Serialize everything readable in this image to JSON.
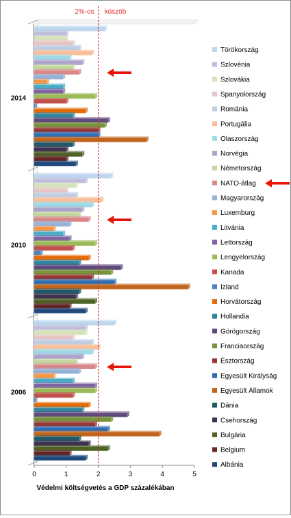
{
  "chart_data": {
    "type": "bar",
    "orientation": "horizontal",
    "title": "",
    "xlabel": "Védelmi költségvetés a GDP százalékában",
    "xlim": [
      0,
      5
    ],
    "xticks": [
      "0",
      "1",
      "2",
      "3",
      "4",
      "5"
    ],
    "groups": [
      "2014",
      "2010",
      "2006"
    ],
    "threshold": {
      "value": 2,
      "label_left": "2%-os",
      "label_right": "küszöb",
      "color": "#e03030"
    },
    "legend_position": "right",
    "grid": false,
    "highlight_series": "NATO-átlag",
    "arrow_color": "#e8140a",
    "series": [
      {
        "name": "Törökország",
        "color": "#bdd7ee",
        "values": [
          2.2,
          2.4,
          2.5
        ]
      },
      {
        "name": "Szlovénia",
        "color": "#c0bedc",
        "values": [
          1.0,
          1.6,
          1.6
        ]
      },
      {
        "name": "Szlovákia",
        "color": "#d5e3bb",
        "values": [
          1.0,
          1.3,
          1.6
        ]
      },
      {
        "name": "Spanyolország",
        "color": "#e8c4c4",
        "values": [
          1.2,
          1.0,
          1.2
        ]
      },
      {
        "name": "Románia",
        "color": "#bccde5",
        "values": [
          1.4,
          1.3,
          1.8
        ]
      },
      {
        "name": "Portugália",
        "color": "#f8c09a",
        "values": [
          1.8,
          2.1,
          2.0
        ]
      },
      {
        "name": "Olaszország",
        "color": "#9fd8e6",
        "values": [
          1.1,
          1.8,
          1.8
        ]
      },
      {
        "name": "Norvégia",
        "color": "#ada3cc",
        "values": [
          1.5,
          1.5,
          1.5
        ]
      },
      {
        "name": "Németország",
        "color": "#c2d89c",
        "values": [
          1.2,
          1.4,
          1.3
        ]
      },
      {
        "name": "NATO-átlag",
        "color": "#d9888a",
        "values": [
          1.4,
          1.7,
          1.9
        ]
      },
      {
        "name": "Magyarország",
        "color": "#95b3d7",
        "values": [
          0.9,
          1.1,
          1.4
        ]
      },
      {
        "name": "Luxemburg",
        "color": "#f79646",
        "values": [
          0.4,
          0.6,
          0.6
        ]
      },
      {
        "name": "Litvánia",
        "color": "#4bacc6",
        "values": [
          0.9,
          0.9,
          1.2
        ]
      },
      {
        "name": "Lettország",
        "color": "#8064a2",
        "values": [
          0.9,
          1.1,
          1.9
        ]
      },
      {
        "name": "Lengyelország",
        "color": "#9bbb59",
        "values": [
          1.9,
          1.9,
          1.9
        ]
      },
      {
        "name": "Kanada",
        "color": "#c0504d",
        "values": [
          1.0,
          1.2,
          1.2
        ]
      },
      {
        "name": "Izland",
        "color": "#4f81bd",
        "values": [
          0.0,
          0.2,
          0.0
        ]
      },
      {
        "name": "Horvátország",
        "color": "#e46c0a",
        "values": [
          1.6,
          1.7,
          1.7
        ]
      },
      {
        "name": "Hollandia",
        "color": "#31859c",
        "values": [
          1.2,
          1.4,
          1.5
        ]
      },
      {
        "name": "Görögország",
        "color": "#604a7b",
        "values": [
          2.3,
          2.7,
          2.9
        ]
      },
      {
        "name": "Franciaország",
        "color": "#77933c",
        "values": [
          2.2,
          2.4,
          2.4
        ]
      },
      {
        "name": "Észtország",
        "color": "#953735",
        "values": [
          2.0,
          1.8,
          1.9
        ]
      },
      {
        "name": "Egyesült Királyság",
        "color": "#2e6eb5",
        "values": [
          2.0,
          2.5,
          2.3
        ]
      },
      {
        "name": "Egyesült Államok",
        "color": "#c0641e",
        "values": [
          3.5,
          4.8,
          3.9
        ]
      },
      {
        "name": "Dánia",
        "color": "#215968",
        "values": [
          1.2,
          1.4,
          1.4
        ]
      },
      {
        "name": "Csehország",
        "color": "#3f3151",
        "values": [
          1.0,
          1.3,
          1.7
        ]
      },
      {
        "name": "Bulgária",
        "color": "#4f6228",
        "values": [
          1.5,
          1.9,
          2.3
        ]
      },
      {
        "name": "Belgium",
        "color": "#632523",
        "values": [
          1.0,
          1.1,
          1.1
        ]
      },
      {
        "name": "Albánia",
        "color": "#1f497d",
        "values": [
          1.3,
          1.6,
          1.6
        ]
      }
    ]
  }
}
